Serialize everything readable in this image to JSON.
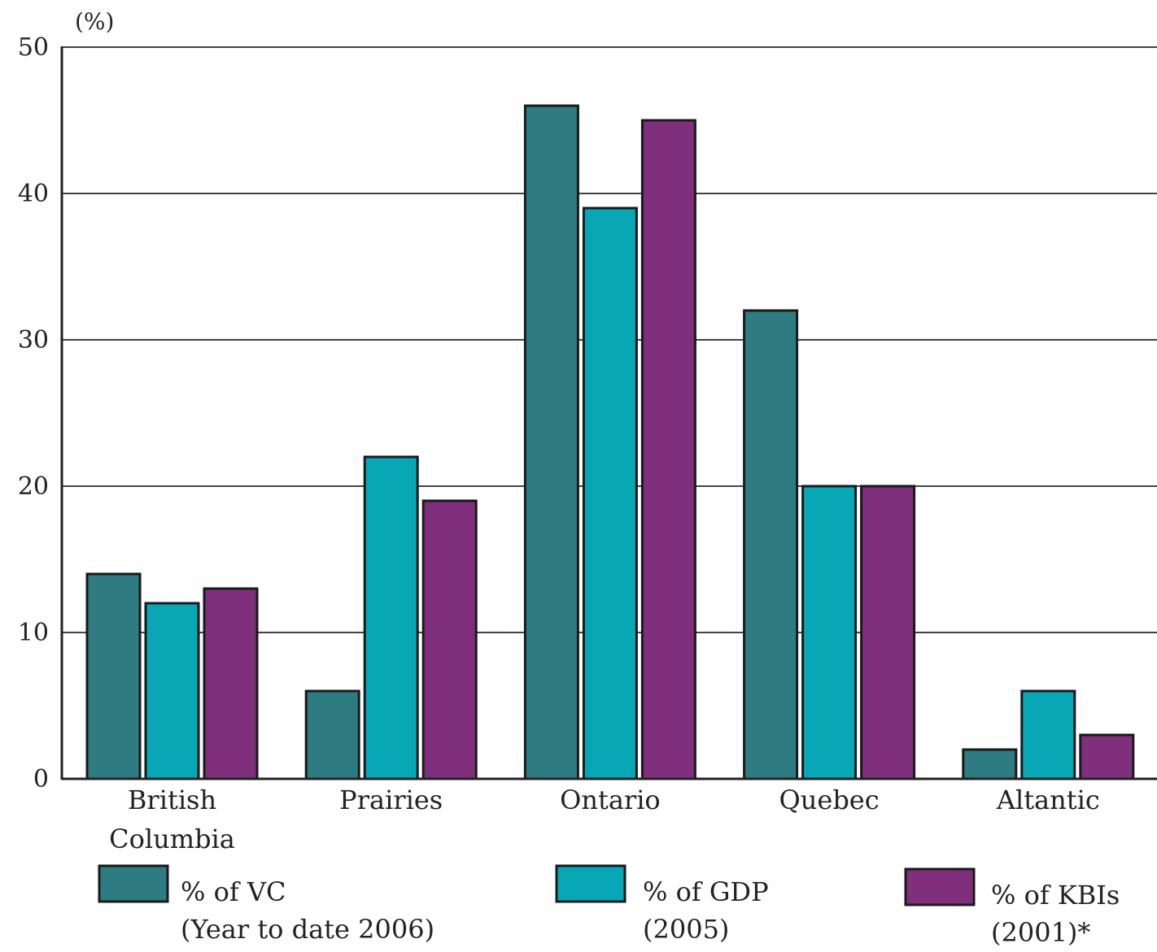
{
  "chart_data": {
    "type": "bar",
    "title": "",
    "xlabel": "",
    "ylabel": "(%)",
    "ylim": [
      0,
      50
    ],
    "yticks": [
      "0",
      "10",
      "20",
      "30",
      "40",
      "50"
    ],
    "grid": true,
    "legend_position": "bottom",
    "categories": [
      [
        "British",
        "Columbia"
      ],
      [
        "Prairies"
      ],
      [
        "Ontario"
      ],
      [
        "Quebec"
      ],
      [
        "Altantic"
      ]
    ],
    "series": [
      {
        "name": [
          "% of VC",
          "(Year to date 2006)"
        ],
        "color": "#2e7b82",
        "values": [
          14,
          6,
          46,
          32,
          2
        ]
      },
      {
        "name": [
          "% of GDP",
          "(2005)"
        ],
        "color": "#08a7b6",
        "values": [
          12,
          22,
          39,
          20,
          6
        ]
      },
      {
        "name": [
          "% of KBIs",
          "(2001)*"
        ],
        "color": "#7f2f7b",
        "values": [
          13,
          19,
          45,
          20,
          3
        ]
      }
    ]
  }
}
